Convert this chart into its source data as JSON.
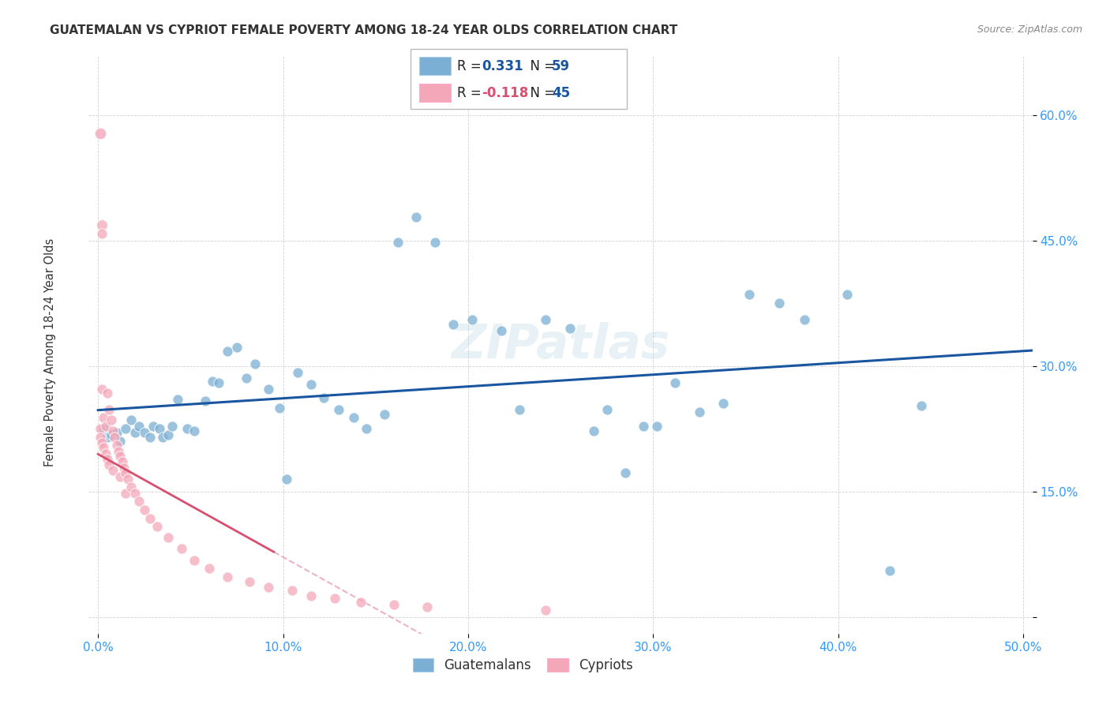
{
  "title": "GUATEMALAN VS CYPRIOT FEMALE POVERTY AMONG 18-24 YEAR OLDS CORRELATION CHART",
  "source": "Source: ZipAtlas.com",
  "ylabel": "Female Poverty Among 18-24 Year Olds",
  "xlim": [
    -0.005,
    0.505
  ],
  "ylim": [
    -0.02,
    0.67
  ],
  "xticks": [
    0.0,
    0.1,
    0.2,
    0.3,
    0.4,
    0.5
  ],
  "yticks": [
    0.0,
    0.15,
    0.3,
    0.45,
    0.6
  ],
  "xtick_labels": [
    "0.0%",
    "10.0%",
    "20.0%",
    "30.0%",
    "40.0%",
    "50.0%"
  ],
  "ytick_labels": [
    "",
    "15.0%",
    "30.0%",
    "45.0%",
    "60.0%"
  ],
  "blue_color": "#7BAFD4",
  "pink_color": "#F4A7B9",
  "blue_line_color": "#1A56A0",
  "pink_line_color": "#D94F70",
  "pink_dash_color": "#E8A0B4",
  "watermark": "ZIPatlas",
  "r_blue": "0.331",
  "n_blue": "59",
  "r_pink": "-0.118",
  "n_pink": "45",
  "guat_x": [
    0.003,
    0.005,
    0.007,
    0.01,
    0.012,
    0.015,
    0.018,
    0.02,
    0.022,
    0.025,
    0.028,
    0.03,
    0.033,
    0.035,
    0.038,
    0.04,
    0.043,
    0.048,
    0.052,
    0.058,
    0.062,
    0.065,
    0.07,
    0.075,
    0.08,
    0.085,
    0.092,
    0.098,
    0.102,
    0.108,
    0.115,
    0.122,
    0.13,
    0.138,
    0.145,
    0.155,
    0.162,
    0.172,
    0.182,
    0.192,
    0.202,
    0.218,
    0.228,
    0.242,
    0.255,
    0.268,
    0.275,
    0.285,
    0.295,
    0.302,
    0.312,
    0.325,
    0.338,
    0.352,
    0.368,
    0.382,
    0.405,
    0.428,
    0.445
  ],
  "guat_y": [
    0.225,
    0.215,
    0.218,
    0.22,
    0.21,
    0.225,
    0.235,
    0.22,
    0.228,
    0.22,
    0.215,
    0.228,
    0.225,
    0.215,
    0.218,
    0.228,
    0.26,
    0.225,
    0.222,
    0.258,
    0.282,
    0.28,
    0.318,
    0.322,
    0.285,
    0.302,
    0.272,
    0.25,
    0.165,
    0.292,
    0.278,
    0.262,
    0.248,
    0.238,
    0.225,
    0.242,
    0.448,
    0.478,
    0.448,
    0.35,
    0.355,
    0.342,
    0.248,
    0.355,
    0.345,
    0.222,
    0.248,
    0.172,
    0.228,
    0.228,
    0.28,
    0.245,
    0.255,
    0.385,
    0.375,
    0.355,
    0.385,
    0.055,
    0.252
  ],
  "cyp_x": [
    0.001,
    0.001,
    0.002,
    0.002,
    0.003,
    0.003,
    0.004,
    0.004,
    0.005,
    0.005,
    0.006,
    0.006,
    0.007,
    0.008,
    0.008,
    0.009,
    0.01,
    0.011,
    0.012,
    0.012,
    0.013,
    0.014,
    0.015,
    0.015,
    0.016,
    0.018,
    0.02,
    0.022,
    0.025,
    0.028,
    0.032,
    0.038,
    0.045,
    0.052,
    0.06,
    0.07,
    0.082,
    0.092,
    0.105,
    0.115,
    0.128,
    0.142,
    0.16,
    0.178,
    0.242
  ],
  "cyp_y": [
    0.225,
    0.215,
    0.272,
    0.208,
    0.238,
    0.202,
    0.228,
    0.195,
    0.268,
    0.188,
    0.248,
    0.182,
    0.235,
    0.222,
    0.175,
    0.215,
    0.205,
    0.198,
    0.192,
    0.168,
    0.185,
    0.178,
    0.172,
    0.148,
    0.165,
    0.155,
    0.148,
    0.138,
    0.128,
    0.118,
    0.108,
    0.095,
    0.082,
    0.068,
    0.058,
    0.048,
    0.042,
    0.035,
    0.032,
    0.025,
    0.022,
    0.018,
    0.015,
    0.012,
    0.008
  ]
}
